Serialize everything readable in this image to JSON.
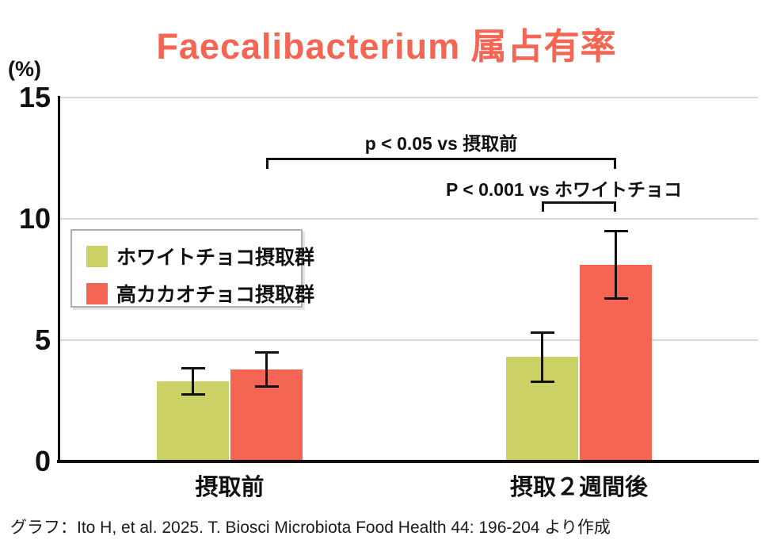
{
  "title": "Faecalibacterium 属占有率",
  "y_axis_unit": "(%)",
  "footer": "グラフ：Ito H, et al. 2025. T. Biosci Microbiota Food Health 44: 196-204 より作成",
  "colors": {
    "title": "#f56553",
    "white_choco": "#ccd165",
    "high_cacao": "#f56553",
    "grid": "#d8d8d8",
    "axis": "#111111",
    "legend_border": "#b0b0b0"
  },
  "chart_data": {
    "type": "bar",
    "title": "Faecalibacterium 属占有率",
    "ylabel": "(%)",
    "ylim": [
      0,
      15
    ],
    "yticks": [
      0,
      5,
      10,
      15
    ],
    "grid": true,
    "legend_position": "upper-left-inside",
    "categories": [
      "摂取前",
      "摂取２週間後"
    ],
    "series": [
      {
        "name": "ホワイトチョコ摂取群",
        "color": "#ccd165",
        "values": [
          3.3,
          4.3
        ],
        "errors": [
          0.55,
          1.0
        ]
      },
      {
        "name": "高カカオチョコ摂取群",
        "color": "#f56553",
        "values": [
          3.8,
          8.1
        ],
        "errors": [
          0.7,
          1.4
        ]
      }
    ],
    "annotations": [
      {
        "text": "p < 0.05 vs 摂取前",
        "from": {
          "series": 1,
          "group": 0
        },
        "to": {
          "series": 1,
          "group": 1
        }
      },
      {
        "text": "P < 0.001 vs ホワイトチョコ",
        "from": {
          "series": 0,
          "group": 1
        },
        "to": {
          "series": 1,
          "group": 1
        }
      }
    ]
  }
}
